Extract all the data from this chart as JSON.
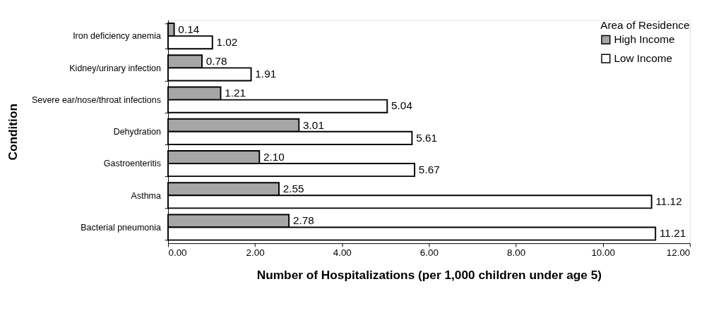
{
  "chart_data": {
    "type": "bar",
    "orientation": "horizontal",
    "xlabel": "Number of Hospitalizations (per 1,000 children under age 5)",
    "ylabel": "Condition",
    "legend_title": "Area of Residence",
    "categories": [
      "Iron deficiency anemia",
      "Kidney/urinary infection",
      "Severe ear/nose/throat infections",
      "Dehydration",
      "Gastroenteritis",
      "Asthma",
      "Bacterial pneumonia"
    ],
    "series": [
      {
        "name": "High Income",
        "color": "#a6a6a6",
        "values": [
          0.14,
          0.78,
          1.21,
          3.01,
          2.1,
          2.55,
          2.78
        ],
        "value_labels": [
          "0.14",
          "0.78",
          "1.21",
          "3.01",
          "2.10",
          "2.55",
          "2.78"
        ]
      },
      {
        "name": "Low Income",
        "color": "#ffffff",
        "values": [
          1.02,
          1.91,
          5.04,
          5.61,
          5.67,
          11.12,
          11.21
        ],
        "value_labels": [
          "1.02",
          "1.91",
          "5.04",
          "5.61",
          "5.67",
          "11.12",
          "11.21"
        ]
      }
    ],
    "xlim": [
      0,
      12
    ],
    "xticks": [
      {
        "value": 0,
        "label": "0.00"
      },
      {
        "value": 2,
        "label": "2.00"
      },
      {
        "value": 4,
        "label": "4.00"
      },
      {
        "value": 6,
        "label": "6.00"
      },
      {
        "value": 8,
        "label": "8.00"
      },
      {
        "value": 10,
        "label": "10.00"
      },
      {
        "value": 12,
        "label": "12.00"
      }
    ],
    "legend": "top right",
    "grid": false
  }
}
